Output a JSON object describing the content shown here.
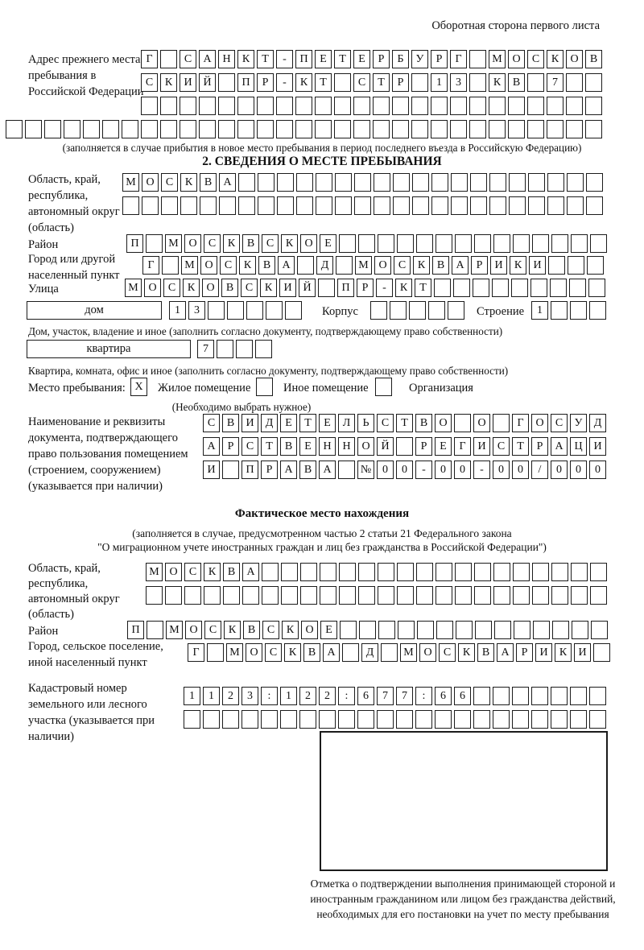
{
  "page": {
    "corner_note": "Оборотная сторона первого листа"
  },
  "prev_address": {
    "label": "Адрес прежнего места пребывания в Российской Федерации",
    "rows": [
      "Г САНКТ-ПЕТЕРБУРГ МОСКОВ",
      "СКИЙ ПР-КТ СТР 13 КВ 7",
      "",
      ""
    ],
    "note": "(заполняется в случае прибытия в новое место пребывания в период последнего въезда в Российскую Федерацию)"
  },
  "section2": {
    "title": "2. СВЕДЕНИЯ О МЕСТЕ ПРЕБЫВАНИЯ",
    "region": {
      "label": "Область, край, республика, автономный округ (область)",
      "rows": [
        "МОСКВА",
        ""
      ]
    },
    "district": {
      "label": "Район",
      "value": "П МОСКВСКОЕ"
    },
    "city": {
      "label": "Город или другой населенный пункт",
      "value": "Г МОСКВА Д МОСКВАРИКИ"
    },
    "street": {
      "label": "Улица",
      "value": "МОСКОВСКИЙ ПР-КТ"
    },
    "house": {
      "label": "дом",
      "value": "13",
      "korpus_label": "Корпус",
      "korpus_value": "",
      "stroenie_label": "Строение",
      "stroenie_value": "1"
    },
    "house_note": "Дом, участок, владение и иное (заполнить согласно документу, подтверждающему право собственности)",
    "apartment": {
      "label": "квартира",
      "value": "7"
    },
    "apartment_note": "Квартира, комната, офис и иное (заполнить согласно документу, подтверждающему право собственности)",
    "stay": {
      "label": "Место пребывания:",
      "options": [
        {
          "mark": "X",
          "label": "Жилое помещение"
        },
        {
          "mark": "",
          "label": "Иное помещение"
        },
        {
          "mark": "",
          "label": "Организация"
        }
      ],
      "note": "(Необходимо выбрать нужное)"
    },
    "document": {
      "label": "Наименование и реквизиты документа, подтверждающего право пользования помещением (строением, сооружением) (указывается при наличии)",
      "rows": [
        "СВИДЕТЕЛЬСТВО О ГОСУД",
        "АРСТВЕННОЙ РЕГИСТРАЦИ",
        "И ПРАВА №00-00-00/000"
      ]
    }
  },
  "actual_location": {
    "title": "Фактическое место нахождения",
    "note_line1": "(заполняется в случае, предусмотренном частью 2 статьи 21 Федерального закона",
    "note_line2": "\"О миграционном учете иностранных граждан и лиц без гражданства в Российской Федерации\")",
    "region": {
      "label": "Область, край, республика, автономный округ (область)",
      "rows": [
        "МОСКВА",
        ""
      ]
    },
    "district": {
      "label": "Район",
      "value": "П МОСКВСКОЕ"
    },
    "city": {
      "label": "Город, сельское поселение, иной населенный пункт",
      "value": "Г МОСКВА Д МОСКВАРИКИ"
    },
    "cadastral": {
      "label": "Кадастровый номер земельного или лесного участка (указывается при наличии)",
      "rows": [
        "1123:122:677:66",
        ""
      ]
    }
  },
  "confirmation": {
    "note": "Отметка о подтверждении выполнения принимающей стороной и иностранным гражданином или лицом без гражданства действий, необходимых для его постановки на учет по месту пребывания"
  }
}
